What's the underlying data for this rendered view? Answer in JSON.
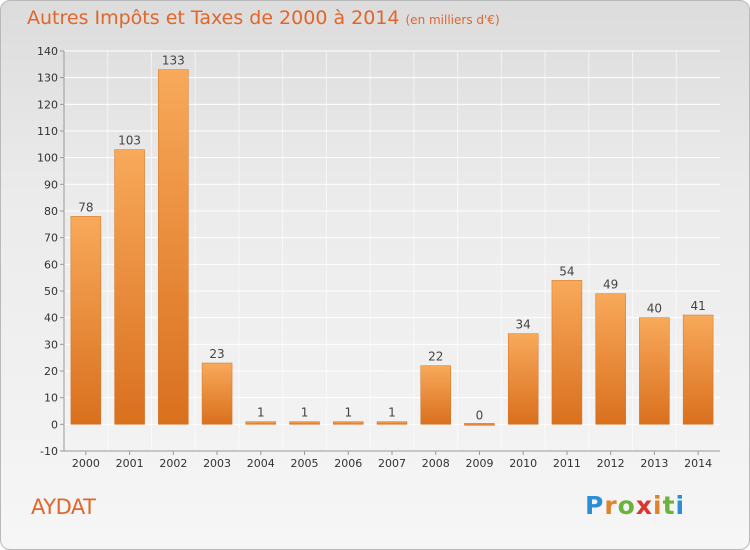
{
  "title": "Autres Impôts et Taxes de 2000 à 2014",
  "subtitle": "(en milliers d'€)",
  "commune": "AYDAT",
  "logo": {
    "text": "Proxiti"
  },
  "colors": {
    "bar_light": "#f8a95a",
    "bar_dark": "#d9701e",
    "title": "#e0662b",
    "grid": "#ffffff",
    "axis": "#9a9a9a"
  },
  "chart_data": {
    "type": "bar",
    "categories": [
      "2000",
      "2001",
      "2002",
      "2003",
      "2004",
      "2005",
      "2006",
      "2007",
      "2008",
      "2009",
      "2010",
      "2011",
      "2012",
      "2013",
      "2014"
    ],
    "values": [
      78,
      103,
      133,
      23,
      1,
      1,
      1,
      1,
      22,
      0,
      34,
      54,
      49,
      40,
      41
    ],
    "ylim": [
      -10,
      140
    ],
    "yticks": [
      -10,
      0,
      10,
      20,
      30,
      40,
      50,
      60,
      70,
      80,
      90,
      100,
      110,
      120,
      130,
      140
    ],
    "title": "Autres Impôts et Taxes de 2000 à 2014",
    "xlabel": "",
    "ylabel": "",
    "grid": true,
    "data_labels": true
  }
}
